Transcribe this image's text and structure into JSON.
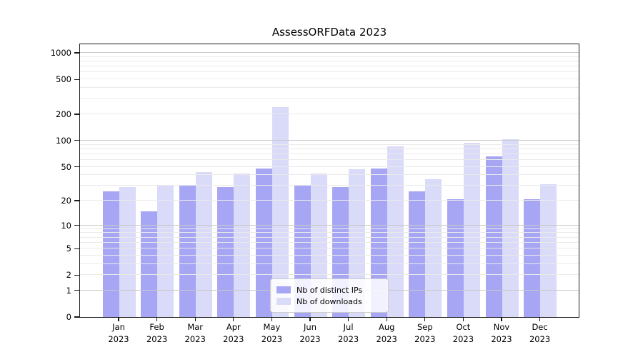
{
  "title": "AssessORFData 2023",
  "chart_data": {
    "type": "bar",
    "title": "AssessORFData 2023",
    "categories": [
      "Jan 2023",
      "Feb 2023",
      "Mar 2023",
      "Apr 2023",
      "May 2023",
      "Jun 2023",
      "Jul 2023",
      "Aug 2023",
      "Sep 2023",
      "Oct 2023",
      "Nov 2023",
      "Dec 2023"
    ],
    "series": [
      {
        "name": "Nb of distinct IPs",
        "color": "#a6a6f4",
        "values": [
          26,
          15,
          30,
          29,
          48,
          30,
          29,
          48,
          26,
          21,
          66,
          21
        ]
      },
      {
        "name": "Nb of downloads",
        "color": "#dadaf9",
        "values": [
          29,
          30,
          43,
          42,
          240,
          42,
          47,
          86,
          36,
          95,
          104,
          31
        ]
      }
    ],
    "yscale": "log(1+x)",
    "ylim": [
      0,
      1250
    ],
    "ytick_values": [
      0,
      1,
      2,
      5,
      10,
      20,
      50,
      100,
      200,
      500,
      1000
    ],
    "grid": "horizontal minor and major gridlines drawn above bars",
    "legend_position": "lower center",
    "xlabel": "",
    "ylabel": ""
  },
  "colors": {
    "grid_minor": "#eaeaea",
    "grid_major": "#c9c9c9",
    "spine": "#1a1a1a",
    "legend_border": "#cccccc",
    "background": "#ffffff"
  }
}
